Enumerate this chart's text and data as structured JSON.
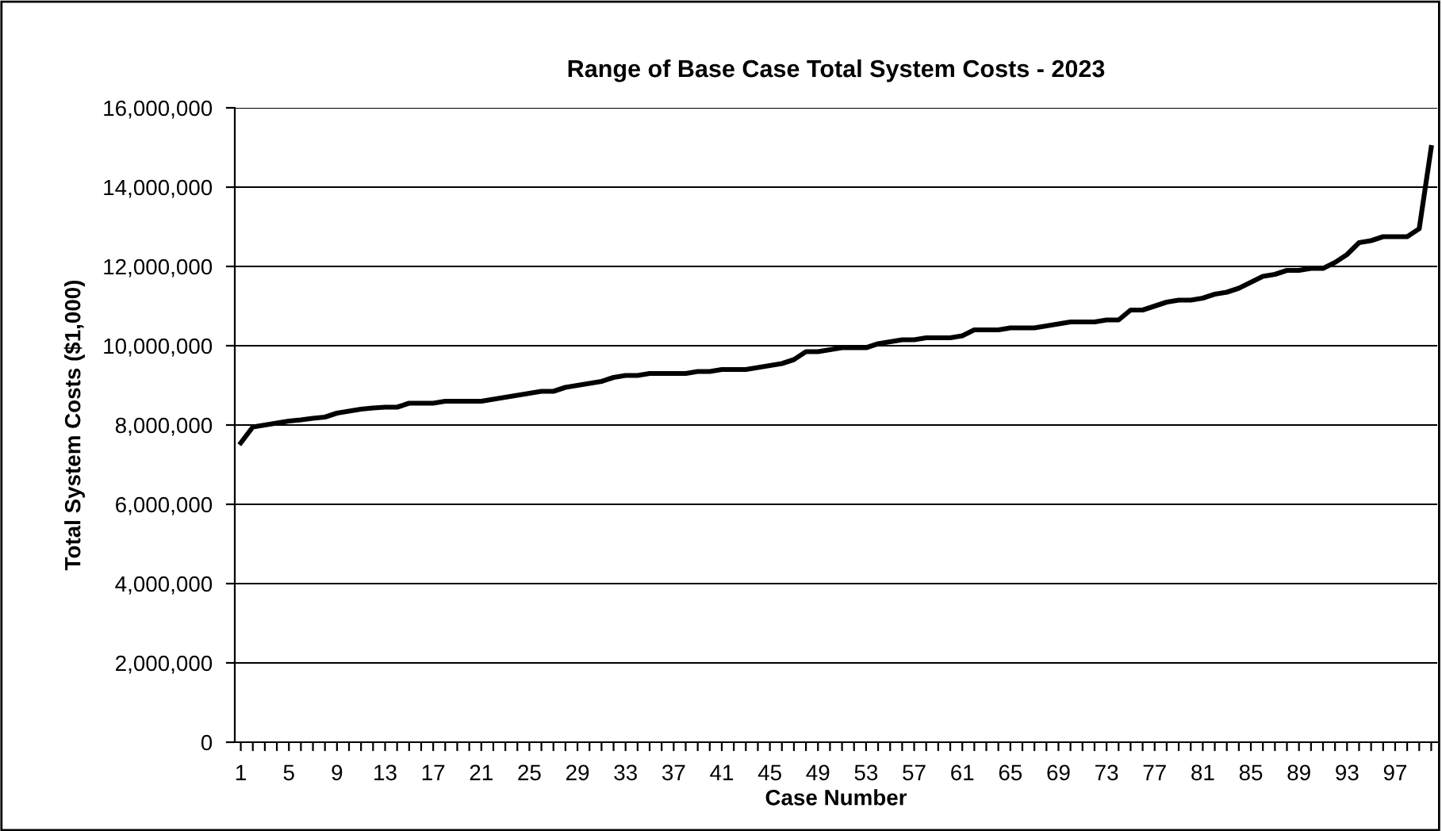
{
  "chart_data": {
    "type": "line",
    "title": "Range of Base Case Total System Costs - 2023",
    "xlabel": "Case Number",
    "ylabel": "Total System Costs ($1,000)",
    "categories": [
      "1",
      null,
      null,
      null,
      "5",
      null,
      null,
      null,
      "9",
      null,
      null,
      null,
      "13",
      null,
      null,
      null,
      "17",
      null,
      null,
      null,
      "21",
      null,
      null,
      null,
      "25",
      null,
      null,
      null,
      "29",
      null,
      null,
      null,
      "33",
      null,
      null,
      null,
      "37",
      null,
      null,
      null,
      "41",
      null,
      null,
      null,
      "45",
      null,
      null,
      null,
      "49",
      null,
      null,
      null,
      "53",
      null,
      null,
      null,
      "57",
      null,
      null,
      null,
      "61",
      null,
      null,
      null,
      "65",
      null,
      null,
      null,
      "69",
      null,
      null,
      null,
      "73",
      null,
      null,
      null,
      "77",
      null,
      null,
      null,
      "81",
      null,
      null,
      null,
      "85",
      null,
      null,
      null,
      "89",
      null,
      null,
      null,
      "93",
      null,
      null,
      null,
      "97",
      null,
      null,
      null
    ],
    "series": [
      {
        "color": "#000000",
        "values": [
          7550000,
          7950000,
          8000000,
          8050000,
          8100000,
          8130000,
          8170000,
          8200000,
          8300000,
          8350000,
          8400000,
          8430000,
          8450000,
          8450000,
          8550000,
          8550000,
          8550000,
          8600000,
          8600000,
          8600000,
          8600000,
          8650000,
          8700000,
          8750000,
          8800000,
          8850000,
          8850000,
          8950000,
          9000000,
          9050000,
          9100000,
          9200000,
          9250000,
          9250000,
          9300000,
          9300000,
          9300000,
          9300000,
          9350000,
          9350000,
          9400000,
          9400000,
          9400000,
          9450000,
          9500000,
          9550000,
          9650000,
          9850000,
          9850000,
          9900000,
          9950000,
          9950000,
          9950000,
          10050000,
          10100000,
          10150000,
          10150000,
          10200000,
          10200000,
          10200000,
          10250000,
          10400000,
          10400000,
          10400000,
          10450000,
          10450000,
          10450000,
          10500000,
          10550000,
          10600000,
          10600000,
          10600000,
          10650000,
          10650000,
          10900000,
          10900000,
          11000000,
          11100000,
          11150000,
          11150000,
          11200000,
          11300000,
          11350000,
          11450000,
          11600000,
          11750000,
          11800000,
          11900000,
          11900000,
          11950000,
          11950000,
          12100000,
          12300000,
          12600000,
          12650000,
          12750000,
          12750000,
          12750000,
          12950000,
          15000000
        ]
      }
    ],
    "ylim": [
      0,
      16000000
    ],
    "yticks": [
      {
        "value": 0,
        "label": "0"
      },
      {
        "value": 2000000,
        "label": "2,000,000"
      },
      {
        "value": 4000000,
        "label": "4,000,000"
      },
      {
        "value": 6000000,
        "label": "6,000,000"
      },
      {
        "value": 8000000,
        "label": "8,000,000"
      },
      {
        "value": 10000000,
        "label": "10,000,000"
      },
      {
        "value": 12000000,
        "label": "12,000,000"
      },
      {
        "value": 14000000,
        "label": "14,000,000"
      },
      {
        "value": 16000000,
        "label": "16,000,000"
      }
    ],
    "grid": "y",
    "marker": "none",
    "line_style": "solid"
  }
}
